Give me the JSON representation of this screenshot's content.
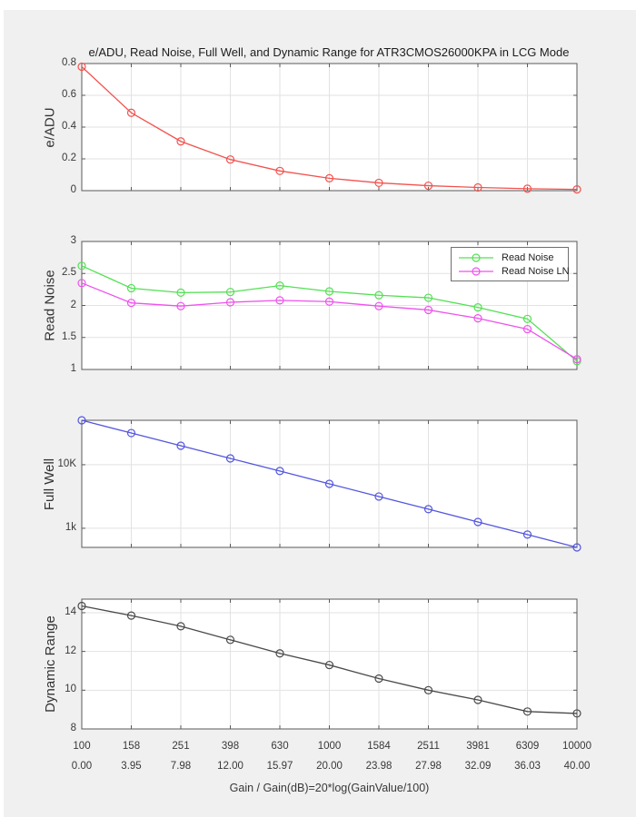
{
  "title": "e/ADU, Read Noise, Full Well, and Dynamic Range for ATR3CMOS26000KPA in LCG Mode",
  "axis_x": {
    "label": "Gain / Gain(dB)=20*log(GainValue/100)",
    "scale": "log",
    "tick_labels_gain": [
      "100",
      "158",
      "251",
      "398",
      "630",
      "1000",
      "1584",
      "2511",
      "3981",
      "6309",
      "10000"
    ],
    "tick_labels_db": [
      "0.00",
      "3.95",
      "7.98",
      "12.00",
      "15.97",
      "20.00",
      "23.98",
      "27.98",
      "32.09",
      "36.03",
      "40.00"
    ]
  },
  "colors": {
    "figure_background": "#f0f0f0",
    "window_edge": "#ffffff",
    "plot_background": "#ffffff",
    "grid": "#e2e2e2",
    "frame": "#5a5a5a",
    "text": "#383838"
  },
  "chart_data": [
    {
      "id": "eadu",
      "type": "line",
      "ylabel": "e/ADU",
      "yscale": "linear",
      "ylim": [
        0,
        0.8
      ],
      "ytick_values": [
        0,
        0.2,
        0.4,
        0.6,
        0.8
      ],
      "ytick_labels": [
        "0",
        "0.2",
        "0.4",
        "0.6",
        "0.8"
      ],
      "x": [
        100,
        158,
        251,
        398,
        630,
        1000,
        1584,
        2511,
        3981,
        6309,
        10000
      ],
      "series": [
        {
          "name": "e/ADU",
          "color": "#f2524e",
          "values": [
            0.78,
            0.49,
            0.31,
            0.196,
            0.124,
            0.078,
            0.049,
            0.031,
            0.02,
            0.012,
            0.008
          ]
        }
      ]
    },
    {
      "id": "read-noise",
      "type": "line",
      "ylabel": "Read Noise",
      "yscale": "linear",
      "ylim": [
        1,
        3
      ],
      "ytick_values": [
        1,
        1.5,
        2,
        2.5,
        3
      ],
      "ytick_labels": [
        "1",
        "1.5",
        "2",
        "2.5",
        "3"
      ],
      "x": [
        100,
        158,
        251,
        398,
        630,
        1000,
        1584,
        2511,
        3981,
        6309,
        10000
      ],
      "legend": {
        "position": "top-right"
      },
      "series": [
        {
          "name": "Read Noise",
          "color": "#53e053",
          "values": [
            2.62,
            2.27,
            2.2,
            2.21,
            2.31,
            2.22,
            2.16,
            2.12,
            1.97,
            1.79,
            1.13
          ]
        },
        {
          "name": "Read Noise LN",
          "color": "#ee52ee",
          "values": [
            2.35,
            2.04,
            1.99,
            2.05,
            2.08,
            2.06,
            1.99,
            1.93,
            1.8,
            1.63,
            1.16
          ]
        }
      ]
    },
    {
      "id": "full-well",
      "type": "line",
      "ylabel": "Full Well",
      "yscale": "log",
      "ylim": [
        500,
        50000
      ],
      "ytick_values": [
        1000,
        10000
      ],
      "ytick_labels": [
        "1k",
        "10K"
      ],
      "x": [
        100,
        158,
        251,
        398,
        630,
        1000,
        1584,
        2511,
        3981,
        6309,
        10000
      ],
      "series": [
        {
          "name": "Full Well",
          "color": "#5356de",
          "values": [
            50000,
            31500,
            19900,
            12560,
            7950,
            5000,
            3160,
            2000,
            1256,
            795,
            500
          ]
        }
      ]
    },
    {
      "id": "dynamic-range",
      "type": "line",
      "ylabel": "Dynamic Range",
      "yscale": "linear",
      "ylim": [
        8,
        14.7
      ],
      "ytick_values": [
        8,
        10,
        12,
        14
      ],
      "ytick_labels": [
        "8",
        "10",
        "12",
        "14"
      ],
      "x": [
        100,
        158,
        251,
        398,
        630,
        1000,
        1584,
        2511,
        3981,
        6309,
        10000
      ],
      "series": [
        {
          "name": "Dynamic Range",
          "color": "#4a4a4a",
          "values": [
            14.35,
            13.85,
            13.3,
            12.6,
            11.9,
            11.3,
            10.6,
            10.0,
            9.5,
            8.9,
            8.8
          ]
        }
      ]
    }
  ]
}
